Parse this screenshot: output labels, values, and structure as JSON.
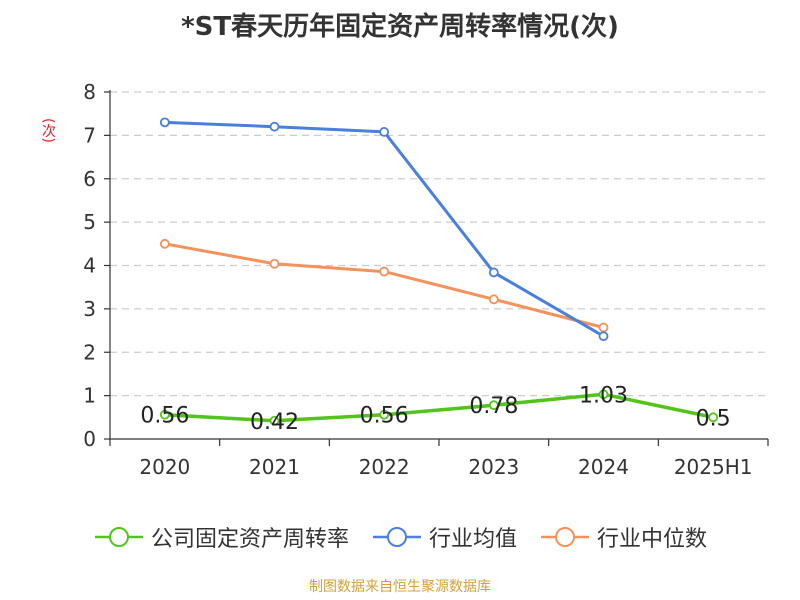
{
  "source_note": "制图数据来自恒生聚源数据库",
  "colors": {
    "axis": "#333333",
    "grid": "#cccccc",
    "ylabel": "#e01f1f",
    "source": "#d4a13a"
  },
  "chart_data": {
    "type": "line",
    "title": "*ST春天历年固定资产周转率情况(次)",
    "xlabel": "",
    "ylabel": "(次)",
    "categories": [
      "2020",
      "2021",
      "2022",
      "2023",
      "2024",
      "2025H1"
    ],
    "ylim": [
      0,
      8
    ],
    "yticks": [
      0,
      1,
      2,
      3,
      4,
      5,
      6,
      7,
      8
    ],
    "grid": true,
    "legend_position": "bottom",
    "series": [
      {
        "name": "公司固定资产周转率",
        "color": "#52c41a",
        "values": [
          0.56,
          0.42,
          0.56,
          0.78,
          1.03,
          0.5
        ],
        "labels": [
          "0.56",
          "0.42",
          "0.56",
          "0.78",
          "1.03",
          "0.5"
        ],
        "show_labels": true,
        "line_width": 3.5
      },
      {
        "name": "行业均值",
        "color": "#4a7fdb",
        "values": [
          7.3,
          7.2,
          7.08,
          3.84,
          2.37,
          null
        ],
        "show_labels": false,
        "line_width": 3
      },
      {
        "name": "行业中位数",
        "color": "#f5915a",
        "values": [
          4.5,
          4.04,
          3.86,
          3.22,
          2.57,
          null
        ],
        "show_labels": false,
        "line_width": 3
      }
    ]
  }
}
